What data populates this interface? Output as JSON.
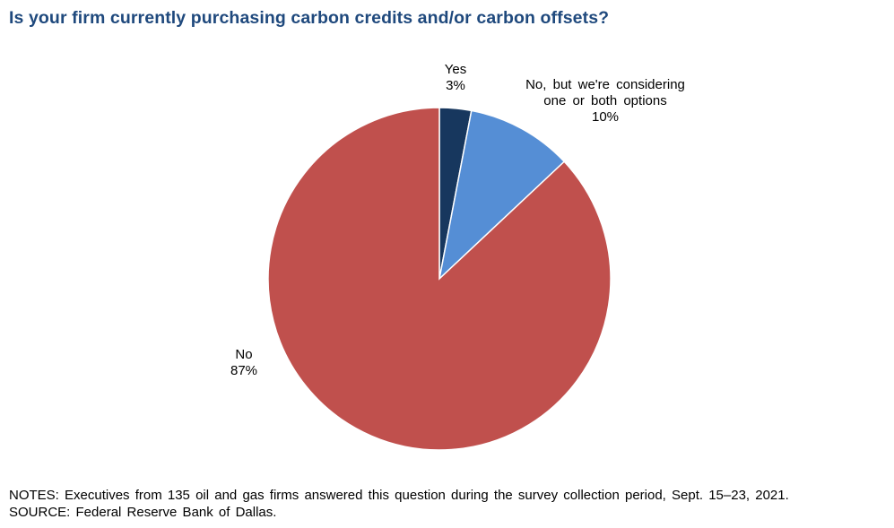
{
  "chart_data": {
    "type": "pie",
    "title": "Is your firm currently purchasing carbon credits and/or carbon offsets?",
    "slices": [
      {
        "label": "Yes",
        "value": 3,
        "value_label": "3%",
        "color": "#17375e"
      },
      {
        "label": "No, but we're considering one or both options",
        "value": 10,
        "value_label": "10%",
        "color": "#558ed5"
      },
      {
        "label": "No",
        "value": 87,
        "value_label": "87%",
        "color": "#c0504d"
      }
    ],
    "start": "top",
    "direction": "clockwise"
  },
  "notes": "NOTES: Executives from 135 oil and gas firms answered this question during the survey collection period, Sept. 15–23, 2021.",
  "source": "SOURCE: Federal Reserve Bank of Dallas."
}
